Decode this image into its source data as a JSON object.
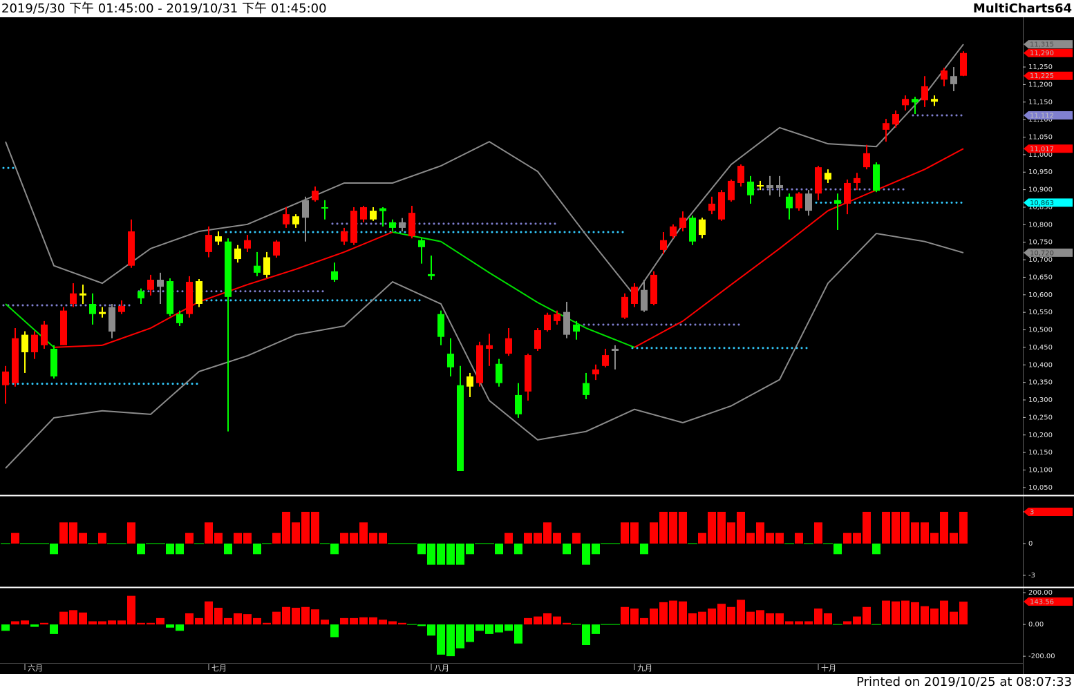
{
  "header": {
    "title": "2019/5/30 下午 01:45:00 - 2019/10/31 下午 01:45:00",
    "brand": "MultiCharts64"
  },
  "footer": {
    "printed": "Printed on 2019/10/25 at 08:07:33"
  },
  "chart_data": [
    {
      "type": "candlestick",
      "categories": [
        null,
        null,
        "六月",
        null,
        null,
        null,
        null,
        null,
        null,
        null,
        null,
        null,
        null,
        null,
        null,
        null,
        null,
        null,
        null,
        null,
        null,
        "七月",
        null,
        null,
        null,
        null,
        null,
        null,
        null,
        null,
        null,
        null,
        null,
        null,
        null,
        null,
        null,
        null,
        null,
        null,
        null,
        null,
        null,
        null,
        "八月",
        null,
        null,
        null,
        null,
        null,
        null,
        null,
        null,
        null,
        null,
        null,
        null,
        null,
        null,
        null,
        null,
        null,
        null,
        null,
        null,
        "九月",
        null,
        null,
        null,
        null,
        null,
        null,
        null,
        null,
        null,
        null,
        null,
        null,
        null,
        null,
        null,
        null,
        null,
        null,
        "十月",
        null,
        null,
        null,
        null,
        null,
        null,
        null,
        null,
        null,
        null,
        null,
        null,
        null,
        null,
        null
      ],
      "open": [
        10342,
        10348,
        10486,
        10436,
        10456,
        10446,
        10456,
        10574,
        10604,
        10574,
        10551,
        10565,
        10551,
        10683,
        10610,
        10614,
        10643,
        10639,
        10545,
        10545,
        10639,
        10722,
        10767,
        10752,
        10732,
        10732,
        10683,
        10707,
        10712,
        10801,
        10824,
        10870,
        10870,
        10850,
        10667,
        10752,
        10748,
        10815,
        10840,
        10847,
        10807,
        10807,
        10767,
        10756,
        10659,
        10545,
        10432,
        10342,
        10367,
        10348,
        10446,
        10403,
        10432,
        10314,
        10324,
        10446,
        10499,
        10525,
        10551,
        10515,
        10348,
        10373,
        10397,
        10446,
        10535,
        10574,
        10614,
        10574,
        10728,
        10767,
        10791,
        10820,
        10815,
        10840,
        10815,
        10870,
        10919,
        10923,
        10913,
        10913,
        10913,
        10880,
        10847,
        10889,
        10889,
        10948,
        10870,
        10860,
        10919,
        10964,
        10972,
        11071,
        11086,
        11141,
        11159,
        11155,
        11159,
        11214,
        11224,
        11225
      ],
      "high": [
        10397,
        10505,
        10496,
        10496,
        10525,
        10456,
        10565,
        10633,
        10629,
        10604,
        10565,
        10574,
        10584,
        10815,
        10618,
        10657,
        10663,
        10647,
        10555,
        10653,
        10645,
        10795,
        10781,
        10761,
        10742,
        10771,
        10722,
        10722,
        10756,
        10850,
        10830,
        10880,
        10909,
        10870,
        10692,
        10791,
        10850,
        10854,
        10850,
        10850,
        10815,
        10819,
        10854,
        10761,
        10712,
        10555,
        10476,
        10397,
        10377,
        10466,
        10489,
        10417,
        10505,
        10348,
        10432,
        10505,
        10549,
        10555,
        10580,
        10525,
        10377,
        10401,
        10446,
        10456,
        10604,
        10633,
        10643,
        10667,
        10779,
        10801,
        10838,
        10826,
        10820,
        10880,
        10899,
        10929,
        10972,
        10939,
        10925,
        10939,
        10939,
        10889,
        10893,
        10899,
        10968,
        10958,
        10889,
        10929,
        10948,
        11028,
        10978,
        11102,
        11126,
        11169,
        11165,
        11224,
        11169,
        11248,
        11250,
        11295
      ],
      "low": [
        10289,
        10338,
        10377,
        10417,
        10446,
        10361,
        10456,
        10565,
        10574,
        10515,
        10535,
        10476,
        10545,
        10677,
        10574,
        10598,
        10574,
        10539,
        10511,
        10535,
        10565,
        10707,
        10742,
        10210,
        10692,
        10722,
        10653,
        10649,
        10706,
        10791,
        10791,
        10752,
        10866,
        10815,
        10637,
        10742,
        10742,
        10807,
        10811,
        10795,
        10781,
        10781,
        10761,
        10689,
        10643,
        10456,
        10367,
        10097,
        10308,
        10338,
        10397,
        10338,
        10426,
        10249,
        10298,
        10440,
        10495,
        10515,
        10476,
        10472,
        10302,
        10357,
        10393,
        10387,
        10531,
        10565,
        10551,
        10570,
        10716,
        10761,
        10781,
        10742,
        10761,
        10830,
        10811,
        10866,
        10909,
        10860,
        10899,
        10884,
        10880,
        10815,
        10840,
        10826,
        10870,
        10919,
        10785,
        10830,
        10899,
        10958,
        10893,
        11037,
        11077,
        11126,
        11116,
        11136,
        11139,
        11195,
        11181,
        11224
      ],
      "close": [
        10381,
        10476,
        10436,
        10486,
        10515,
        10367,
        10555,
        10604,
        10598,
        10545,
        10545,
        10495,
        10568,
        10781,
        10590,
        10643,
        10623,
        10545,
        10519,
        10637,
        10574,
        10771,
        10752,
        10594,
        10702,
        10756,
        10663,
        10657,
        10752,
        10830,
        10801,
        10820,
        10897,
        10847,
        10643,
        10781,
        10840,
        10850,
        10815,
        10839,
        10791,
        10791,
        10834,
        10736,
        10653,
        10480,
        10393,
        10097,
        10338,
        10456,
        10456,
        10348,
        10476,
        10259,
        10428,
        10499,
        10543,
        10545,
        10486,
        10495,
        10314,
        10387,
        10428,
        10440,
        10594,
        10623,
        10555,
        10657,
        10756,
        10795,
        10820,
        10752,
        10771,
        10860,
        10893,
        10925,
        10968,
        10884,
        10909,
        10905,
        10905,
        10847,
        10889,
        10840,
        10964,
        10929,
        10860,
        10919,
        10933,
        11004,
        10897,
        11090,
        11116,
        11159,
        11149,
        11195,
        11151,
        11240,
        11201,
        11290
      ],
      "candle_colors": [
        "R",
        "R",
        "Y",
        "R",
        "R",
        "G",
        "R",
        "R",
        "Y",
        "G",
        "Y",
        "N",
        "R",
        "R",
        "G",
        "R",
        "N",
        "G",
        "G",
        "R",
        "Y",
        "R",
        "Y",
        "G",
        "Y",
        "R",
        "G",
        "Y",
        "R",
        "R",
        "Y",
        "N",
        "R",
        "G",
        "G",
        "R",
        "R",
        "R",
        "Y",
        "G",
        "G",
        "N",
        "R",
        "G",
        "G",
        "G",
        "G",
        "G",
        "Y",
        "R",
        "R",
        "G",
        "R",
        "G",
        "R",
        "R",
        "R",
        "R",
        "N",
        "G",
        "G",
        "R",
        "R",
        "N",
        "R",
        "R",
        "N",
        "R",
        "R",
        "R",
        "R",
        "G",
        "Y",
        "R",
        "R",
        "R",
        "R",
        "G",
        "Y",
        "N",
        "N",
        "G",
        "R",
        "N",
        "R",
        "Y",
        "G",
        "R",
        "R",
        "R",
        "G",
        "R",
        "R",
        "R",
        "G",
        "R",
        "Y",
        "R",
        "N",
        "R"
      ],
      "palette": {
        "R": "#ff0000",
        "G": "#00ff00",
        "Y": "#ffff00",
        "N": "#8c8c8c"
      },
      "ylim": [
        10030,
        11392
      ],
      "yticks": [
        {
          "value": 10050,
          "label": "10,050"
        },
        {
          "value": 10100,
          "label": "10,100"
        },
        {
          "value": 10150,
          "label": "10,150"
        },
        {
          "value": 10200,
          "label": "10,200"
        },
        {
          "value": 10250,
          "label": "10,250"
        },
        {
          "value": 10300,
          "label": "10,300"
        },
        {
          "value": 10350,
          "label": "10,350"
        },
        {
          "value": 10400,
          "label": "10,400"
        },
        {
          "value": 10450,
          "label": "10,450"
        },
        {
          "value": 10500,
          "label": "10,500"
        },
        {
          "value": 10550,
          "label": "10,550"
        },
        {
          "value": 10600,
          "label": "10,600"
        },
        {
          "value": 10650,
          "label": "10,650"
        },
        {
          "value": 10700,
          "label": "10,700"
        },
        {
          "value": 10750,
          "label": "10,750"
        },
        {
          "value": 10800,
          "label": "10,800"
        },
        {
          "value": 10850,
          "label": "10,850"
        },
        {
          "value": 10900,
          "label": "10,900"
        },
        {
          "value": 10950,
          "label": "10,950"
        },
        {
          "value": 11000,
          "label": "11,000"
        },
        {
          "value": 11050,
          "label": "11,050"
        },
        {
          "value": 11100,
          "label": "11,100"
        },
        {
          "value": 11150,
          "label": "11,150"
        },
        {
          "value": 11200,
          "label": "11,200"
        },
        {
          "value": 11250,
          "label": "11,250"
        }
      ],
      "lines": [
        {
          "color": "#8c8c8c",
          "x": [
            0,
            5,
            10,
            15,
            20,
            25,
            30,
            35,
            40,
            45,
            50,
            55,
            60,
            65,
            70,
            75,
            80,
            85,
            90,
            95,
            99
          ],
          "values": [
            11037,
            10683,
            10633,
            10732,
            10781,
            10801,
            10860,
            10919,
            10919,
            10968,
            11037,
            10952,
            10771,
            10598,
            10801,
            10972,
            11077,
            11031,
            11023,
            11171,
            11315
          ]
        },
        {
          "color": "#8c8c8c",
          "x": [
            0,
            5,
            10,
            15,
            20,
            25,
            30,
            35,
            40,
            45,
            50,
            55,
            60,
            65,
            70,
            75,
            80,
            85,
            90,
            95,
            99
          ],
          "values": [
            10105,
            10249,
            10269,
            10259,
            10381,
            10426,
            10486,
            10511,
            10637,
            10574,
            10298,
            10186,
            10210,
            10273,
            10235,
            10283,
            10358,
            10633,
            10775,
            10752,
            10720
          ]
        },
        {
          "color": "slope",
          "up_color": "#ff0000",
          "down_color": "#00e000",
          "x": [
            0,
            5,
            10,
            15,
            20,
            25,
            30,
            35,
            40,
            45,
            50,
            55,
            60,
            65,
            70,
            75,
            80,
            85,
            90,
            95,
            99
          ],
          "values": [
            10574,
            10450,
            10456,
            10505,
            10580,
            10629,
            10673,
            10722,
            10779,
            10752,
            10663,
            10578,
            10505,
            10450,
            10525,
            10629,
            10732,
            10840,
            10899,
            10958,
            11017
          ]
        }
      ],
      "levels": [
        {
          "from": 0,
          "to": 1,
          "value": 10962,
          "color": "#33ccff"
        },
        {
          "from": 0,
          "to": 13,
          "value": 10570,
          "color": "#8080d0"
        },
        {
          "from": 0,
          "to": 20,
          "value": 10346,
          "color": "#33ccff"
        },
        {
          "from": 14,
          "to": 33,
          "value": 10610,
          "color": "#8080d0"
        },
        {
          "from": 20,
          "to": 43,
          "value": 10584,
          "color": "#33ccff"
        },
        {
          "from": 34,
          "to": 57,
          "value": 10803,
          "color": "#8080d0"
        },
        {
          "from": 23,
          "to": 64,
          "value": 10779,
          "color": "#33ccff"
        },
        {
          "from": 60,
          "to": 76,
          "value": 10515,
          "color": "#8080d0"
        },
        {
          "from": 65,
          "to": 83,
          "value": 10448,
          "color": "#33ccff"
        },
        {
          "from": 77,
          "to": 93,
          "value": 10901,
          "color": "#8080d0"
        },
        {
          "from": 84,
          "to": 99,
          "value": 10863,
          "color": "#33ccff"
        },
        {
          "from": 94,
          "to": 99,
          "value": 11112,
          "color": "#8080d0"
        }
      ],
      "price_tags": [
        {
          "value": 11315,
          "label": "11,315",
          "color": "#8c8c8c",
          "text_color": "#505050"
        },
        {
          "value": 11290,
          "label": "11,290",
          "color": "#ff0000",
          "text_color": "#c0c0c0"
        },
        {
          "value": 11225,
          "label": "11,225",
          "color": "#ff0000",
          "text_color": "#c0c0c0"
        },
        {
          "value": 11112,
          "label": "11,112",
          "color": "#8080d0",
          "text_color": "#c0c0c0"
        },
        {
          "value": 11017,
          "label": "11,017",
          "color": "#ff0000",
          "text_color": "#c0c0c0"
        },
        {
          "value": 10863,
          "label": "10,863",
          "color": "#00ffff",
          "text_color": "#004040"
        },
        {
          "value": 10720,
          "label": "10,720",
          "color": "#8c8c8c",
          "text_color": "#404040"
        }
      ]
    },
    {
      "type": "bar",
      "values": [
        0,
        1,
        0,
        0,
        0,
        -1,
        2,
        2,
        1,
        0,
        1,
        0,
        0,
        2,
        -1,
        0,
        0,
        -1,
        -1,
        1,
        0,
        2,
        1,
        -1,
        1,
        1,
        -1,
        0,
        1,
        3,
        2,
        3,
        3,
        0,
        -1,
        1,
        1,
        2,
        1,
        1,
        0,
        0,
        0,
        -1,
        -2,
        -2,
        -2,
        -2,
        -1,
        0,
        0,
        -1,
        1,
        -1,
        1,
        1,
        2,
        1,
        -1,
        1,
        -2,
        -1,
        0,
        0,
        2,
        2,
        -1,
        2,
        3,
        3,
        3,
        0,
        1,
        3,
        3,
        2,
        3,
        1,
        2,
        1,
        1,
        0,
        1,
        0,
        2,
        0,
        -1,
        1,
        1,
        3,
        -1,
        3,
        3,
        3,
        2,
        2,
        1,
        3,
        1,
        3
      ],
      "up_color": "#ff0000",
      "down_color": "#00ff00",
      "ylim": [
        -3.98,
        4.37
      ],
      "yticks": [
        3,
        0,
        -3
      ],
      "price_tags": [
        {
          "value": 3,
          "label": "3",
          "color": "#ff0000",
          "text_color": "#c0c0c0"
        }
      ]
    },
    {
      "type": "bar",
      "values": [
        -40,
        20,
        25,
        -15,
        10,
        -60,
        80,
        90,
        75,
        20,
        20,
        25,
        25,
        180,
        10,
        10,
        40,
        -20,
        -40,
        70,
        40,
        145,
        105,
        40,
        70,
        65,
        40,
        10,
        80,
        110,
        105,
        110,
        95,
        30,
        -80,
        40,
        40,
        45,
        45,
        30,
        20,
        10,
        0,
        -10,
        -70,
        -190,
        -200,
        -150,
        -110,
        -40,
        -60,
        -50,
        -40,
        -120,
        40,
        50,
        70,
        50,
        10,
        0,
        -130,
        -60,
        0,
        0,
        110,
        100,
        40,
        100,
        140,
        150,
        145,
        70,
        80,
        100,
        130,
        110,
        155,
        80,
        90,
        70,
        70,
        20,
        20,
        20,
        100,
        70,
        0,
        20,
        50,
        110,
        0,
        150,
        145,
        150,
        140,
        115,
        100,
        150,
        80,
        143.56
      ],
      "up_color": "#ff0000",
      "down_color": "#00ff00",
      "ylim": [
        -243,
        222
      ],
      "yticks": [
        {
          "value": 200,
          "label": "200.00"
        },
        {
          "value": 0,
          "label": "0.00"
        },
        {
          "value": -200,
          "label": "-200.00"
        }
      ],
      "price_tags": [
        {
          "value": 143.56,
          "label": "143.56",
          "color": "#ff0000",
          "text_color": "#c0c0c0"
        }
      ]
    }
  ]
}
